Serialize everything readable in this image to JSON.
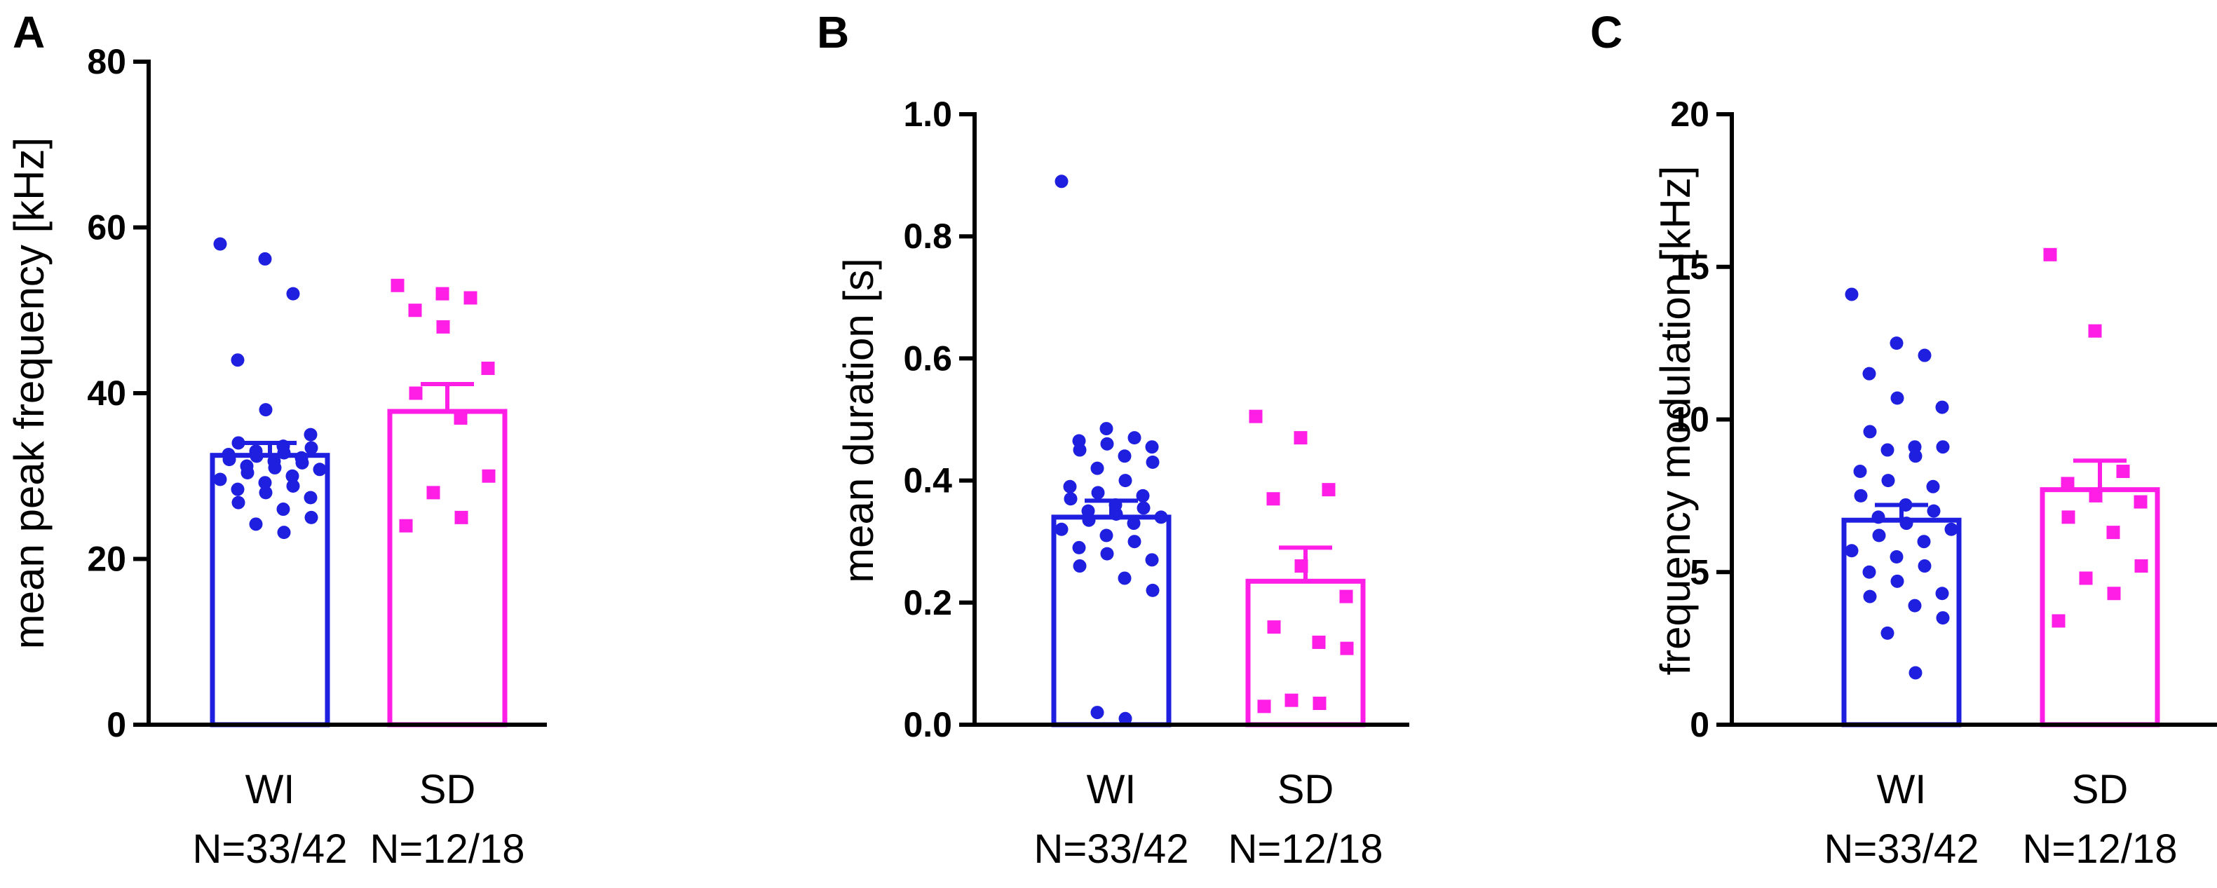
{
  "colors": {
    "WI": "#1f1fe0",
    "SD": "#ff1ee6",
    "axis": "#000000"
  },
  "chart_data": [
    {
      "type": "bar",
      "panel": "A",
      "ylabel": "mean peak frequency [kHz]",
      "ylim": [
        0,
        80
      ],
      "yticks": [
        0,
        20,
        40,
        60,
        80
      ],
      "ytick_labels": [
        "0",
        "20",
        "40",
        "60",
        "80"
      ],
      "categories": [
        "WI",
        "SD"
      ],
      "n_labels": [
        "N=33/42",
        "N=12/18"
      ],
      "values": [
        32.5,
        37.8
      ],
      "sem": [
        1.5,
        3.3
      ],
      "points": [
        [
          58,
          56.2,
          52,
          44,
          38,
          35,
          34,
          33.6,
          33.4,
          33,
          32.8,
          32.6,
          32.4,
          32.2,
          32,
          31.8,
          31.6,
          31.2,
          31,
          30.8,
          30.4,
          30,
          29.6,
          29.2,
          28.8,
          28.4,
          28,
          27.4,
          26.8,
          26,
          25,
          24.2,
          23.2
        ],
        [
          53,
          52,
          51.5,
          50,
          48,
          43,
          40,
          37,
          30,
          28,
          25,
          24
        ]
      ]
    },
    {
      "type": "bar",
      "panel": "B",
      "ylabel": "mean duration [s]",
      "ylim": [
        0,
        1.0
      ],
      "yticks": [
        0,
        0.2,
        0.4,
        0.6,
        0.8,
        1.0
      ],
      "ytick_labels": [
        "0.0",
        "0.2",
        "0.4",
        "0.6",
        "0.8",
        "1.0"
      ],
      "categories": [
        "WI",
        "SD"
      ],
      "n_labels": [
        "N=33/42",
        "N=12/18"
      ],
      "values": [
        0.34,
        0.235
      ],
      "sem": [
        0.027,
        0.055
      ],
      "points": [
        [
          0.89,
          0.485,
          0.47,
          0.465,
          0.46,
          0.455,
          0.45,
          0.44,
          0.43,
          0.42,
          0.4,
          0.39,
          0.38,
          0.375,
          0.37,
          0.36,
          0.355,
          0.35,
          0.345,
          0.34,
          0.335,
          0.33,
          0.32,
          0.31,
          0.3,
          0.29,
          0.28,
          0.27,
          0.26,
          0.24,
          0.22,
          0.02,
          0.01
        ],
        [
          0.505,
          0.47,
          0.385,
          0.37,
          0.26,
          0.21,
          0.16,
          0.135,
          0.125,
          0.04,
          0.035,
          0.03
        ]
      ]
    },
    {
      "type": "bar",
      "panel": "C",
      "ylabel": "frequency modulation [kHz]",
      "ylim": [
        0,
        20
      ],
      "yticks": [
        0,
        5,
        10,
        15,
        20
      ],
      "ytick_labels": [
        "0",
        "5",
        "10",
        "15",
        "20"
      ],
      "categories": [
        "WI",
        "SD"
      ],
      "n_labels": [
        "N=33/42",
        "N=12/18"
      ],
      "values": [
        6.7,
        7.7
      ],
      "sem": [
        0.5,
        0.95
      ],
      "points": [
        [
          14.1,
          12.5,
          12.1,
          11.5,
          10.7,
          10.4,
          9.6,
          9.1,
          9.1,
          9.0,
          8.8,
          8.3,
          8.0,
          7.8,
          7.5,
          7.2,
          7.0,
          6.8,
          6.6,
          6.4,
          6.2,
          6.0,
          5.7,
          5.5,
          5.2,
          5.0,
          4.7,
          4.3,
          4.2,
          3.9,
          3.5,
          3.0,
          1.7
        ],
        [
          15.4,
          12.9,
          8.3,
          7.9,
          7.5,
          7.3,
          6.8,
          6.3,
          5.2,
          4.8,
          4.3,
          3.4
        ]
      ]
    }
  ]
}
